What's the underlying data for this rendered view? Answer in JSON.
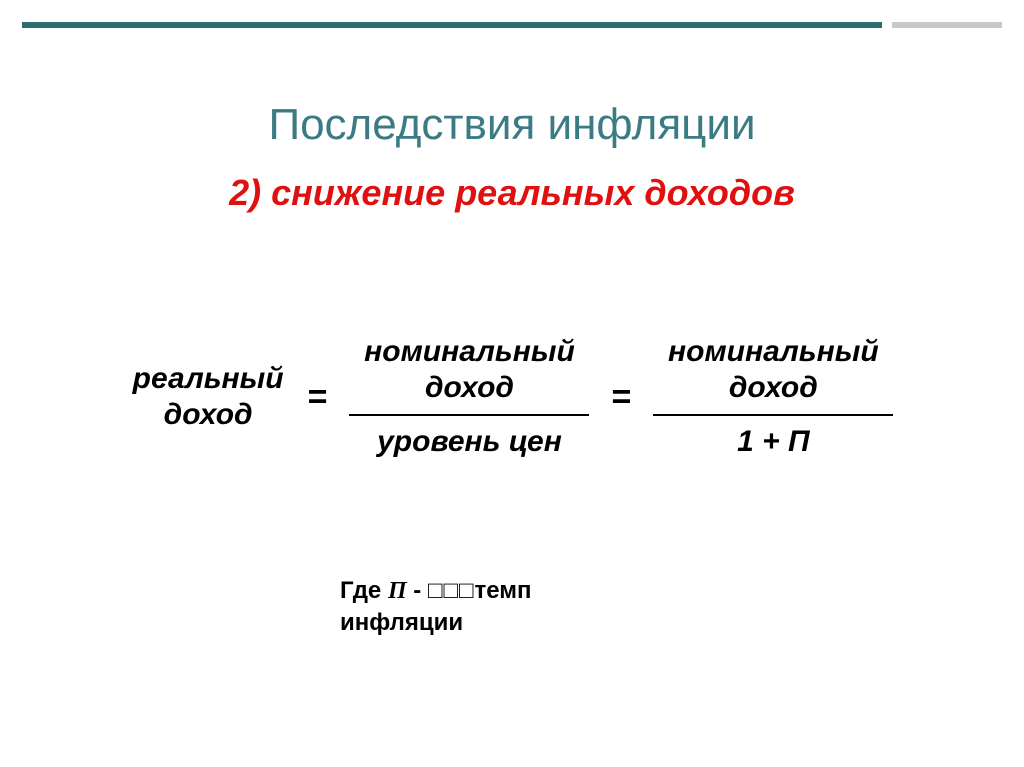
{
  "colors": {
    "title": "#3b7b84",
    "subtitle": "#e11010",
    "text": "#000000",
    "topbar_teal": "#2e6b73",
    "topbar_grey": "#c8c8c8",
    "background": "#ffffff",
    "fraction_line": "#000000"
  },
  "typography": {
    "title_fontsize": 44,
    "subtitle_fontsize": 36,
    "term_fontsize": 30,
    "legend_fontsize": 24,
    "font_family": "Arial"
  },
  "title": "Последствия инфляции",
  "subtitle": "2) снижение реальных доходов",
  "formula": {
    "lhs": "реальный\nдоход",
    "eq": "=",
    "frac1": {
      "top": "номинальный\nдоход",
      "bot": "уровень цен"
    },
    "frac2": {
      "top": "номинальный\nдоход",
      "bot": "1 + П"
    }
  },
  "legend": {
    "prefix": "Где   ",
    "symbol": "П",
    "dash": "   -  ",
    "boxes": "□□□",
    "tail": "темп\nинфляции"
  }
}
